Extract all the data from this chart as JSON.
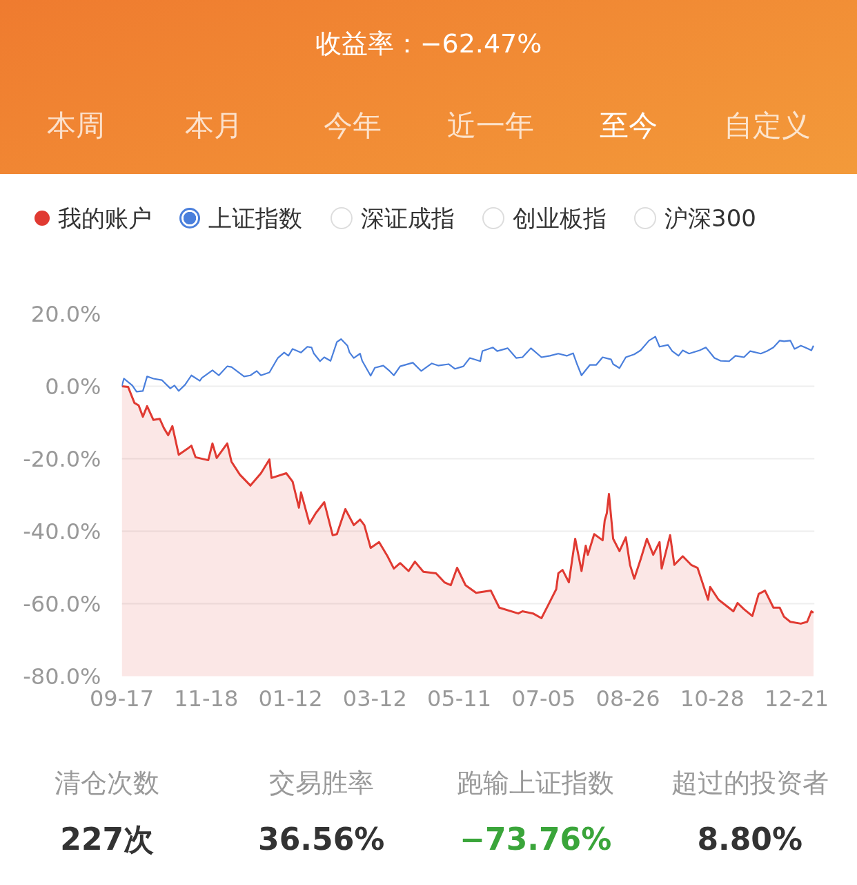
{
  "chart_data": {
    "type": "line",
    "title": "收益率：−62.47%",
    "categories": [
      "09-17",
      null,
      null,
      null,
      null,
      null,
      null,
      null,
      null,
      null,
      null,
      null,
      null,
      null,
      null,
      null,
      null,
      null,
      null,
      null,
      null,
      null,
      null,
      null,
      null,
      null,
      null,
      null,
      null,
      null,
      null,
      null,
      null,
      null,
      null,
      null,
      null,
      null,
      null,
      null,
      "11-18",
      null,
      null,
      null,
      null,
      null,
      null,
      null,
      null,
      null,
      null,
      null,
      null,
      null,
      null,
      null,
      null,
      null,
      null,
      null,
      null,
      null,
      null,
      null,
      null,
      null,
      null,
      null,
      null,
      null,
      null,
      null,
      null,
      null,
      null,
      null,
      null,
      null,
      null,
      null,
      "01-12",
      null,
      null,
      null,
      null,
      null,
      null,
      null,
      null,
      null,
      null,
      null,
      null,
      null,
      null,
      null,
      null,
      null,
      null,
      null,
      null,
      null,
      null,
      null,
      null,
      null,
      null,
      null,
      null,
      null,
      null,
      null,
      null,
      null,
      null,
      null,
      null,
      null,
      null,
      null,
      "03-12",
      null,
      null,
      null,
      null,
      null,
      null,
      null,
      null,
      null,
      null,
      null,
      null,
      null,
      null,
      null,
      null,
      null,
      null,
      null,
      null,
      null,
      null,
      null,
      null,
      null,
      null,
      null,
      null,
      null,
      null,
      null,
      null,
      null,
      null,
      null,
      null,
      null,
      null,
      null,
      "05-11",
      null,
      null,
      null,
      null,
      null,
      null,
      null,
      null,
      null,
      null,
      null,
      null,
      null,
      null,
      null,
      null,
      null,
      null,
      null,
      null,
      null,
      null,
      null,
      null,
      null,
      null,
      null,
      null,
      null,
      null,
      null,
      null,
      null,
      null,
      null,
      null,
      null,
      null,
      null,
      "07-05",
      null,
      null,
      null,
      null,
      null,
      null,
      null,
      null,
      null,
      null,
      null,
      null,
      null,
      null,
      null,
      null,
      null,
      null,
      null,
      null,
      null,
      null,
      null,
      null,
      null,
      null,
      null,
      null,
      null,
      null,
      null,
      null,
      null,
      null,
      null,
      null,
      null,
      null,
      null,
      "08-26",
      null,
      null,
      null,
      null,
      null,
      null,
      null,
      null,
      null,
      null,
      null,
      null,
      null,
      null,
      null,
      null,
      null,
      null,
      null,
      null,
      null,
      null,
      null,
      null,
      null,
      null,
      null,
      null,
      null,
      null,
      null,
      null,
      null,
      null,
      null,
      null,
      null,
      null,
      null,
      "10-28",
      null,
      null,
      null,
      null,
      null,
      null,
      null,
      null,
      null,
      null,
      null,
      null,
      null,
      null,
      null,
      null,
      null,
      null,
      null,
      null,
      null,
      null,
      null,
      null,
      null,
      null,
      null,
      null,
      null,
      null,
      null,
      null,
      null,
      null,
      null,
      null,
      null,
      null,
      null,
      "12-21",
      null,
      null,
      null,
      null,
      null,
      null,
      null,
      null
    ],
    "series": [
      {
        "name": "我的账户",
        "type": "area",
        "color": "#e03a32",
        "values": [
          0,
          null,
          null,
          -0.2,
          null,
          null,
          -4.6,
          null,
          -5.3,
          null,
          -8.4,
          null,
          -5.5,
          null,
          null,
          -9.3,
          null,
          null,
          -9.0,
          null,
          -11.6,
          null,
          -13.5,
          null,
          -11.0,
          null,
          null,
          -18.9,
          null,
          null,
          null,
          -17.3,
          null,
          -16.4,
          null,
          -19.6,
          null,
          null,
          null,
          null,
          null,
          -20.4,
          null,
          -15.8,
          null,
          -19.8,
          null,
          null,
          null,
          null,
          -15.8,
          null,
          -20.8,
          null,
          null,
          null,
          -24.4,
          null,
          null,
          null,
          null,
          -27.4,
          null,
          null,
          null,
          null,
          -24.0,
          null,
          null,
          null,
          -20.2,
          -25.3,
          null,
          null,
          null,
          null,
          null,
          null,
          -24.0,
          null,
          null,
          -26.3,
          null,
          null,
          -33.5,
          -29.3,
          null,
          null,
          null,
          -37.9,
          null,
          null,
          -35.0,
          null,
          null,
          null,
          -32.0,
          null,
          null,
          null,
          -41.1,
          null,
          -40.8,
          null,
          null,
          null,
          -33.9,
          null,
          null,
          null,
          -38.3,
          null,
          null,
          -36.8,
          null,
          -38.3,
          null,
          null,
          -44.6,
          null,
          null,
          null,
          -43.0,
          null,
          null,
          null,
          -46.9,
          null,
          null,
          -50.3,
          null,
          null,
          -48.8,
          null,
          null,
          null,
          -51.0,
          null,
          null,
          -48.4,
          null,
          null,
          null,
          -51.2,
          null,
          null,
          null,
          null,
          null,
          -51.6,
          null,
          null,
          null,
          -54.1,
          null,
          null,
          -54.9,
          null,
          null,
          -50.1,
          null,
          null,
          null,
          -54.9,
          null,
          null,
          null,
          null,
          -57.0,
          null,
          null,
          null,
          null,
          null,
          null,
          -56.4,
          null,
          null,
          null,
          -61.1,
          null,
          null,
          null,
          null,
          null,
          null,
          null,
          null,
          -62.7,
          null,
          -62.1,
          null,
          null,
          null,
          null,
          -62.7,
          null,
          null,
          null,
          -64.0,
          null,
          null,
          -60.6,
          null,
          null,
          null,
          -56.0,
          -51.6,
          null,
          -50.7,
          null,
          null,
          -54.1,
          null,
          null,
          -42.1,
          null,
          null,
          -51.0,
          null,
          -44.0,
          -46.5,
          null,
          null,
          -40.8,
          null,
          null,
          null,
          -42.5,
          -37.0,
          -35.0,
          -29.7,
          null,
          -42.1,
          null,
          null,
          -45.5,
          null,
          null,
          -41.7,
          null,
          -49.3,
          null,
          -53.1,
          null,
          null,
          -47.8,
          null,
          null,
          -42.1,
          null,
          null,
          -46.5,
          null,
          null,
          -43.0,
          -50.3,
          null,
          null,
          null,
          -41.1,
          null,
          -49.3,
          null,
          null,
          null,
          -46.9,
          null,
          null,
          null,
          -49.3,
          null,
          null,
          -50.1,
          null,
          null,
          null,
          null,
          -58.9,
          -55.4,
          null,
          null,
          null,
          -58.9,
          null,
          null,
          null,
          null,
          null,
          null,
          -62.1,
          null,
          -59.8,
          null,
          null,
          -61.5,
          null,
          null,
          null,
          -63.4,
          null,
          null,
          -57.3,
          null,
          null,
          -56.4,
          null,
          null,
          null,
          -61.1,
          null,
          null,
          -61.1,
          null,
          -63.6,
          null,
          null,
          -65.0,
          null,
          null,
          null,
          null,
          -65.5,
          null,
          null,
          -65.0,
          null,
          -62.1,
          -62.5
        ]
      },
      {
        "name": "上证指数",
        "color": "#4a7fdc",
        "values": [
          0,
          2.1,
          null,
          null,
          null,
          0.2,
          null,
          -1.5,
          null,
          null,
          -1.3,
          null,
          2.7,
          null,
          null,
          2.1,
          null,
          null,
          null,
          1.7,
          null,
          null,
          null,
          -0.6,
          null,
          0.2,
          null,
          -1.3,
          null,
          null,
          0.4,
          null,
          null,
          3.0,
          null,
          null,
          null,
          1.5,
          2.3,
          null,
          null,
          null,
          null,
          4.4,
          null,
          null,
          3.0,
          null,
          null,
          null,
          5.5,
          null,
          5.3,
          null,
          null,
          null,
          null,
          null,
          2.7,
          null,
          null,
          3.0,
          null,
          null,
          4.2,
          null,
          3.0,
          null,
          null,
          null,
          3.8,
          null,
          null,
          null,
          7.8,
          null,
          null,
          9.3,
          null,
          8.4,
          null,
          10.3,
          null,
          null,
          null,
          9.3,
          null,
          null,
          10.9,
          null,
          10.7,
          9.1,
          null,
          null,
          6.9,
          null,
          8.0,
          null,
          null,
          7.0,
          null,
          null,
          12.2,
          null,
          13.0,
          null,
          null,
          11.2,
          9.3,
          null,
          7.8,
          null,
          null,
          9.0,
          7.0,
          null,
          null,
          null,
          2.9,
          null,
          5.1,
          null,
          null,
          null,
          5.7,
          null,
          null,
          4.2,
          null,
          3.0,
          null,
          null,
          5.5,
          null,
          null,
          null,
          null,
          null,
          6.5,
          null,
          null,
          null,
          4.2,
          null,
          null,
          null,
          null,
          6.3,
          null,
          null,
          5.7,
          null,
          null,
          null,
          null,
          6.1,
          null,
          null,
          4.8,
          null,
          null,
          null,
          5.5,
          null,
          null,
          7.8,
          null,
          null,
          null,
          null,
          6.9,
          9.7,
          null,
          null,
          null,
          null,
          10.7,
          null,
          9.7,
          null,
          null,
          null,
          null,
          10.5,
          null,
          null,
          null,
          7.8,
          null,
          null,
          8.0,
          null,
          null,
          null,
          10.5,
          null,
          null,
          null,
          null,
          8.0,
          null,
          null,
          null,
          8.4,
          null,
          null,
          null,
          9.0,
          null,
          null,
          null,
          8.4,
          null,
          null,
          9.1,
          null,
          5.9,
          null,
          3.0,
          null,
          null,
          null,
          5.9,
          null,
          null,
          5.9,
          null,
          null,
          8.0,
          null,
          null,
          null,
          7.4,
          6.1,
          null,
          null,
          5.0,
          null,
          null,
          8.0,
          null,
          null,
          null,
          8.8,
          null,
          null,
          9.9,
          null,
          null,
          null,
          12.6,
          null,
          null,
          13.7,
          null,
          10.9,
          null,
          null,
          null,
          11.4,
          null,
          9.7,
          null,
          null,
          8.4,
          null,
          9.9,
          null,
          null,
          9.0,
          null,
          null,
          null,
          null,
          9.9,
          null,
          null,
          10.7,
          null,
          null,
          null,
          7.8,
          null,
          null,
          7.0,
          null,
          null,
          null,
          6.9,
          null,
          null,
          8.4,
          null,
          null,
          null,
          8.0,
          null,
          null,
          9.7,
          null,
          null,
          null,
          null,
          9.0,
          null,
          null,
          9.7,
          null,
          null,
          10.7,
          null,
          null,
          12.6,
          null,
          12.4,
          null,
          null,
          12.6,
          null,
          10.3,
          null,
          null,
          11.2,
          null,
          10.7,
          null,
          null,
          9.9,
          11.2
        ]
      }
    ],
    "ylim": [
      -80,
      20
    ],
    "yticks": [
      {
        "value": 20,
        "label": "20.0%"
      },
      {
        "value": 0,
        "label": "0.0%"
      },
      {
        "value": -20,
        "label": "-20.0%"
      },
      {
        "value": -40,
        "label": "-40.0%"
      },
      {
        "value": -60,
        "label": "-60.0%"
      },
      {
        "value": -80,
        "label": "-80.0%"
      }
    ],
    "grid": "y",
    "legend": "top",
    "annotations": [
      "本周",
      "本月",
      "今年",
      "近一年",
      "至今",
      "自定义",
      "深证成指",
      "创业板指",
      "沪深300",
      "清仓次数",
      "227次",
      "交易胜率",
      "36.56%",
      "跑输上证指数",
      "−73.76%",
      "超过的投资者",
      "8.80%"
    ]
  }
}
